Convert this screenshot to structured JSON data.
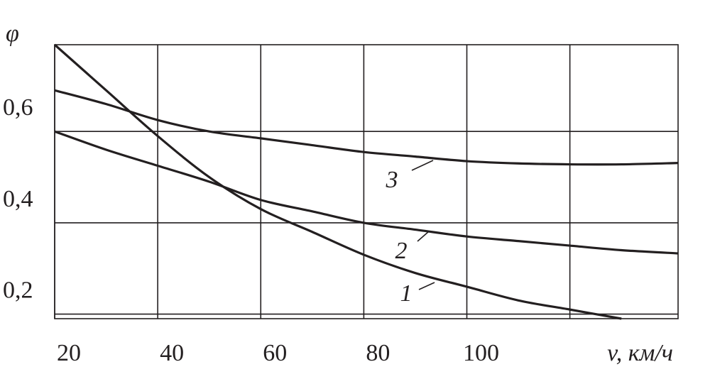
{
  "chart_data": {
    "type": "line",
    "x_label": "v, км/ч",
    "y_label": "φ",
    "xlim": [
      20,
      141
    ],
    "ylim": [
      0.19,
      0.79
    ],
    "xticks": [
      20,
      40,
      60,
      80,
      100,
      {
        "value": 120,
        "label": null
      }
    ],
    "yticks": [
      {
        "value": 0.2,
        "label": "0,2"
      },
      {
        "value": 0.4,
        "label": "0,4"
      },
      {
        "value": 0.6,
        "label": "0,6"
      }
    ],
    "grid": true,
    "series": [
      {
        "name": "1",
        "color": "#231f20",
        "x": [
          20,
          30,
          40,
          50,
          60,
          70,
          80,
          90,
          100,
          110,
          120,
          130
        ],
        "values": [
          0.79,
          0.69,
          0.59,
          0.5,
          0.43,
          0.38,
          0.33,
          0.29,
          0.26,
          0.23,
          0.21,
          0.19
        ]
      },
      {
        "name": "2",
        "color": "#231f20",
        "x": [
          20,
          30,
          40,
          50,
          60,
          70,
          80,
          90,
          100,
          110,
          120,
          130,
          141
        ],
        "values": [
          0.6,
          0.56,
          0.525,
          0.49,
          0.45,
          0.425,
          0.4,
          0.385,
          0.37,
          0.36,
          0.35,
          0.34,
          0.333
        ]
      },
      {
        "name": "3",
        "color": "#231f20",
        "x": [
          20,
          30,
          40,
          50,
          60,
          70,
          80,
          90,
          100,
          110,
          120,
          130,
          141
        ],
        "values": [
          0.69,
          0.66,
          0.625,
          0.6,
          0.585,
          0.57,
          0.555,
          0.545,
          0.535,
          0.53,
          0.528,
          0.528,
          0.531
        ]
      }
    ]
  }
}
